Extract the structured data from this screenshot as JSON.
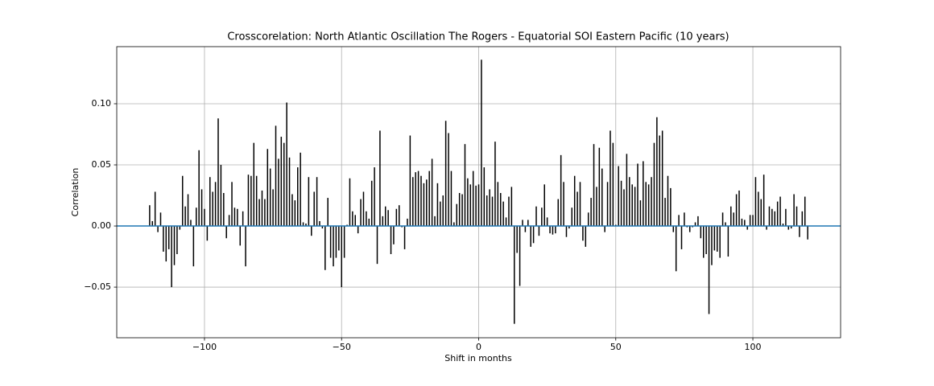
{
  "chart_data": {
    "type": "xcorr",
    "title": "Crosscorelation: North Atlantic Oscillation The Rogers - Equatorial SOI Eastern Pacific (10 years)",
    "x_label": "Shift in months",
    "y_label": "Correlation",
    "color": "#000000",
    "baseline_color": "#1f77b4",
    "x": [
      -120,
      -119,
      -118,
      -117,
      -116,
      -115,
      -114,
      -113,
      -112,
      -111,
      -110,
      -109,
      -108,
      -107,
      -106,
      -105,
      -104,
      -103,
      -102,
      -101,
      -100,
      -99,
      -98,
      -97,
      -96,
      -95,
      -94,
      -93,
      -92,
      -91,
      -90,
      -89,
      -88,
      -87,
      -86,
      -85,
      -84,
      -83,
      -82,
      -81,
      -80,
      -79,
      -78,
      -77,
      -76,
      -75,
      -74,
      -73,
      -72,
      -71,
      -70,
      -69,
      -68,
      -67,
      -66,
      -65,
      -64,
      -63,
      -62,
      -61,
      -60,
      -59,
      -58,
      -57,
      -56,
      -55,
      -54,
      -53,
      -52,
      -51,
      -50,
      -49,
      -48,
      -47,
      -46,
      -45,
      -44,
      -43,
      -42,
      -41,
      -40,
      -39,
      -38,
      -37,
      -36,
      -35,
      -34,
      -33,
      -32,
      -31,
      -30,
      -29,
      -28,
      -27,
      -26,
      -25,
      -24,
      -23,
      -22,
      -21,
      -20,
      -19,
      -18,
      -17,
      -16,
      -15,
      -14,
      -13,
      -12,
      -11,
      -10,
      -9,
      -8,
      -7,
      -6,
      -5,
      -4,
      -3,
      -2,
      -1,
      0,
      1,
      2,
      3,
      4,
      5,
      6,
      7,
      8,
      9,
      10,
      11,
      12,
      13,
      14,
      15,
      16,
      17,
      18,
      19,
      20,
      21,
      22,
      23,
      24,
      25,
      26,
      27,
      28,
      29,
      30,
      31,
      32,
      33,
      34,
      35,
      36,
      37,
      38,
      39,
      40,
      41,
      42,
      43,
      44,
      45,
      46,
      47,
      48,
      49,
      50,
      51,
      52,
      53,
      54,
      55,
      56,
      57,
      58,
      59,
      60,
      61,
      62,
      63,
      64,
      65,
      66,
      67,
      68,
      69,
      70,
      71,
      72,
      73,
      74,
      75,
      76,
      77,
      78,
      79,
      80,
      81,
      82,
      83,
      84,
      85,
      86,
      87,
      88,
      89,
      90,
      91,
      92,
      93,
      94,
      95,
      96,
      97,
      98,
      99,
      100,
      101,
      102,
      103,
      104,
      105,
      106,
      107,
      108,
      109,
      110,
      111,
      112,
      113,
      114,
      115,
      116,
      117,
      118,
      119,
      120
    ],
    "values": [
      0.017,
      0.004,
      0.028,
      -0.005,
      0.011,
      -0.021,
      -0.029,
      -0.019,
      -0.05,
      -0.032,
      -0.023,
      -0.003,
      0.041,
      0.016,
      0.026,
      0.005,
      -0.033,
      0.015,
      0.062,
      0.03,
      0.014,
      -0.012,
      0.04,
      0.028,
      0.036,
      0.088,
      0.05,
      0.027,
      -0.01,
      0.009,
      0.036,
      0.015,
      0.014,
      -0.016,
      0.012,
      -0.033,
      0.042,
      0.041,
      0.068,
      0.041,
      0.022,
      0.029,
      0.022,
      0.063,
      0.047,
      0.03,
      0.082,
      0.055,
      0.073,
      0.068,
      0.101,
      0.056,
      0.026,
      0.021,
      0.048,
      0.06,
      0.003,
      0.002,
      0.04,
      -0.008,
      0.028,
      0.04,
      0.004,
      -0.002,
      -0.036,
      0.023,
      -0.026,
      -0.033,
      -0.026,
      -0.02,
      -0.05,
      -0.026,
      0.001,
      0.039,
      0.012,
      0.009,
      -0.006,
      0.022,
      0.028,
      0.012,
      0.006,
      0.037,
      0.048,
      -0.031,
      0.078,
      0.008,
      0.016,
      0.013,
      -0.023,
      -0.015,
      0.014,
      0.017,
      -0.001,
      -0.019,
      0.006,
      0.074,
      0.04,
      0.044,
      0.045,
      0.041,
      0.035,
      0.038,
      0.045,
      0.055,
      0.008,
      0.035,
      0.02,
      0.025,
      0.086,
      0.076,
      0.045,
      0.003,
      0.018,
      0.027,
      0.026,
      0.067,
      0.039,
      0.034,
      0.045,
      0.033,
      0.034,
      0.136,
      0.048,
      0.025,
      0.03,
      0.024,
      0.069,
      0.036,
      0.027,
      0.02,
      0.007,
      0.024,
      0.032,
      -0.08,
      -0.022,
      -0.049,
      0.005,
      -0.005,
      0.005,
      -0.017,
      -0.014,
      0.016,
      -0.008,
      0.015,
      0.034,
      0.007,
      -0.006,
      -0.007,
      -0.006,
      0.022,
      0.058,
      0.036,
      -0.009,
      -0.002,
      0.015,
      0.041,
      0.028,
      0.036,
      -0.012,
      -0.017,
      0.011,
      0.023,
      0.067,
      0.032,
      0.064,
      0.047,
      -0.005,
      0.036,
      0.078,
      0.068,
      0.001,
      0.049,
      0.037,
      0.03,
      0.059,
      0.04,
      0.034,
      0.032,
      0.051,
      0.021,
      0.053,
      0.036,
      0.034,
      0.04,
      0.068,
      0.089,
      0.074,
      0.078,
      0.023,
      0.041,
      0.031,
      -0.005,
      -0.037,
      0.009,
      -0.019,
      0.011,
      -0.001,
      -0.005,
      -0.001,
      0.003,
      0.008,
      -0.01,
      -0.026,
      -0.023,
      -0.072,
      -0.032,
      -0.02,
      -0.021,
      -0.026,
      0.011,
      0.003,
      -0.025,
      0.016,
      0.011,
      0.026,
      0.029,
      0.006,
      0.005,
      -0.003,
      0.009,
      0.009,
      0.04,
      0.028,
      0.022,
      0.042,
      -0.003,
      0.016,
      0.014,
      0.012,
      0.02,
      0.024,
      0.002,
      0.014,
      -0.003,
      -0.002,
      0.026,
      0.016,
      -0.009,
      0.012,
      0.024,
      -0.011
    ],
    "xlim": [
      -132,
      132
    ],
    "ylim": [
      -0.0914,
      0.1467
    ],
    "xticks": [
      {
        "value": -100,
        "label": "−100"
      },
      {
        "value": -50,
        "label": "−50"
      },
      0,
      50,
      100
    ],
    "yticks": [
      {
        "value": -0.05,
        "label": "−0.05"
      },
      {
        "value": 0,
        "label": "0.00"
      },
      0.05,
      {
        "value": 0.1,
        "label": "0.10"
      }
    ],
    "grid": true
  }
}
